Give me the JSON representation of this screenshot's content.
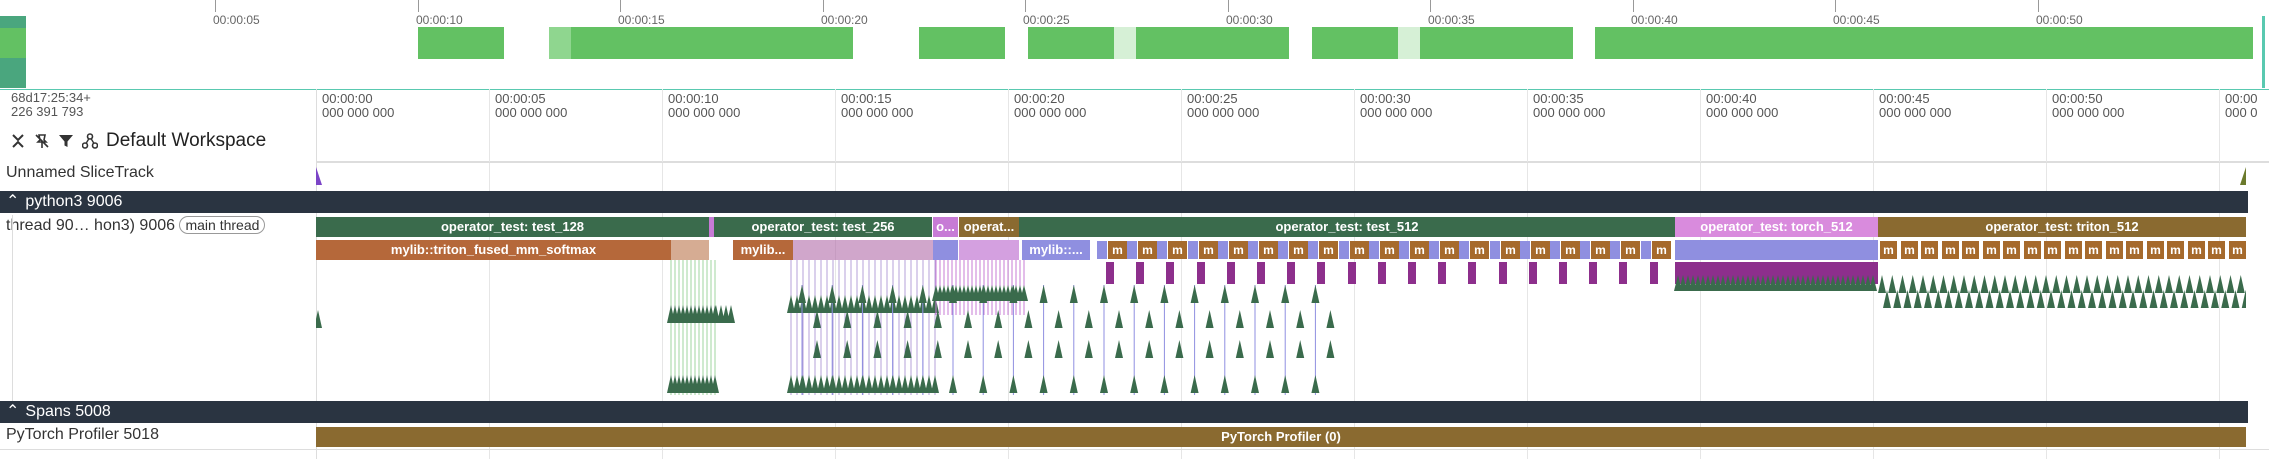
{
  "overview": {
    "tick_labels": [
      "00:00:05",
      "00:00:10",
      "00:00:15",
      "00:00:20",
      "00:00:25",
      "00:00:30",
      "00:00:35",
      "00:00:40",
      "00:00:45",
      "00:00:50"
    ]
  },
  "header": {
    "timestamp_line1": "68d17:25:34+",
    "timestamp_line2": "226 391 793",
    "workspace_label": "Default Workspace"
  },
  "ruler": {
    "labels": [
      {
        "time": "00:00:00",
        "ns": "000 000 000"
      },
      {
        "time": "00:00:05",
        "ns": "000 000 000"
      },
      {
        "time": "00:00:10",
        "ns": "000 000 000"
      },
      {
        "time": "00:00:15",
        "ns": "000 000 000"
      },
      {
        "time": "00:00:20",
        "ns": "000 000 000"
      },
      {
        "time": "00:00:25",
        "ns": "000 000 000"
      },
      {
        "time": "00:00:30",
        "ns": "000 000 000"
      },
      {
        "time": "00:00:35",
        "ns": "000 000 000"
      },
      {
        "time": "00:00:40",
        "ns": "000 000 000"
      },
      {
        "time": "00:00:45",
        "ns": "000 000 000"
      },
      {
        "time": "00:00:50",
        "ns": "000 000 000"
      },
      {
        "time": "00:00",
        "ns": "000 0"
      }
    ]
  },
  "tracks": {
    "unnamed_slice_track": "Unnamed SliceTrack",
    "python_group": "python3 9006",
    "thread_label": "thread 90… hon3) 9006",
    "main_thread_badge": "main thread",
    "spans_group": "Spans 5008",
    "profiler_track": "PyTorch Profiler 5018"
  },
  "slices": {
    "top": [
      {
        "label": "operator_test: test_128",
        "color": "#3a6b4c"
      },
      {
        "label": "o",
        "color": "#8a6a30"
      },
      {
        "label": "operator_test: test_256",
        "color": "#3a6b4c"
      },
      {
        "label": "o...",
        "color": "#c77bd6"
      },
      {
        "label": "operat...",
        "color": "#8a6a30"
      },
      {
        "label": "operator_test: test_512",
        "color": "#3a6b4c"
      },
      {
        "label": "operator_test: torch_512",
        "color": "#d98bdd"
      },
      {
        "label": "operator_test: triton_512",
        "color": "#8a6a30"
      }
    ],
    "second": [
      {
        "label": "mylib::triton_fused_mm_softmax",
        "color": "#b5683a"
      },
      {
        "label": "mylib...",
        "color": "#b5683a"
      },
      {
        "label": "mylib::...",
        "color": "#8f8fe0"
      }
    ],
    "m_label": "m",
    "profiler_slice": "PyTorch Profiler (0)"
  },
  "colors": {
    "green": "#3a6b4c",
    "olive": "#8a6a30",
    "pink": "#d98bdd",
    "brown": "#a66a2c",
    "purple": "#8d2f8c",
    "lavender": "#8f8fe0",
    "overview_green": "#63c163",
    "group_bar": "#2a3441"
  }
}
